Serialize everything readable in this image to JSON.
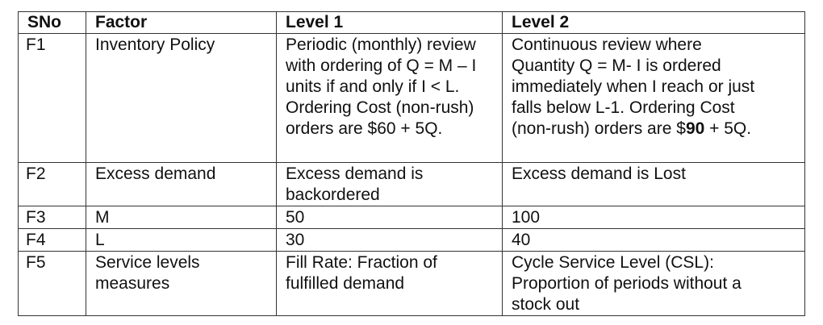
{
  "table": {
    "headers": [
      "SNo",
      "Factor",
      "Level 1",
      "Level 2"
    ],
    "rows": [
      {
        "sno": "F1",
        "factor": "Inventory Policy",
        "level1": [
          "Periodic (monthly) review",
          "with ordering of Q = M – I",
          "units if and only if I < L.",
          "Ordering Cost (non-rush)",
          "orders are $60 + 5Q."
        ],
        "level2_lines": [
          "Continuous review where",
          "Quantity Q = M- I is ordered",
          "immediately when I reach or just",
          "falls below L-1. Ordering Cost"
        ],
        "level2_last_prefix": "(non-rush) orders are $",
        "level2_last_bold": "90",
        "level2_last_suffix": " + 5Q."
      },
      {
        "sno": "F2",
        "factor": "Excess demand",
        "level1": [
          "Excess demand is",
          "backordered"
        ],
        "level2": [
          "Excess demand is Lost"
        ]
      },
      {
        "sno": "F3",
        "factor": "M",
        "level1": [
          "50"
        ],
        "level2": [
          "100"
        ]
      },
      {
        "sno": "F4",
        "factor": "L",
        "level1": [
          "30"
        ],
        "level2": [
          "40"
        ]
      },
      {
        "sno": "F5",
        "factor": [
          "Service levels",
          "measures"
        ],
        "level1": [
          "Fill Rate: Fraction of",
          "fulfilled demand"
        ],
        "level2": [
          "Cycle Service Level (CSL):",
          "Proportion of periods without a",
          "stock out"
        ]
      }
    ]
  }
}
